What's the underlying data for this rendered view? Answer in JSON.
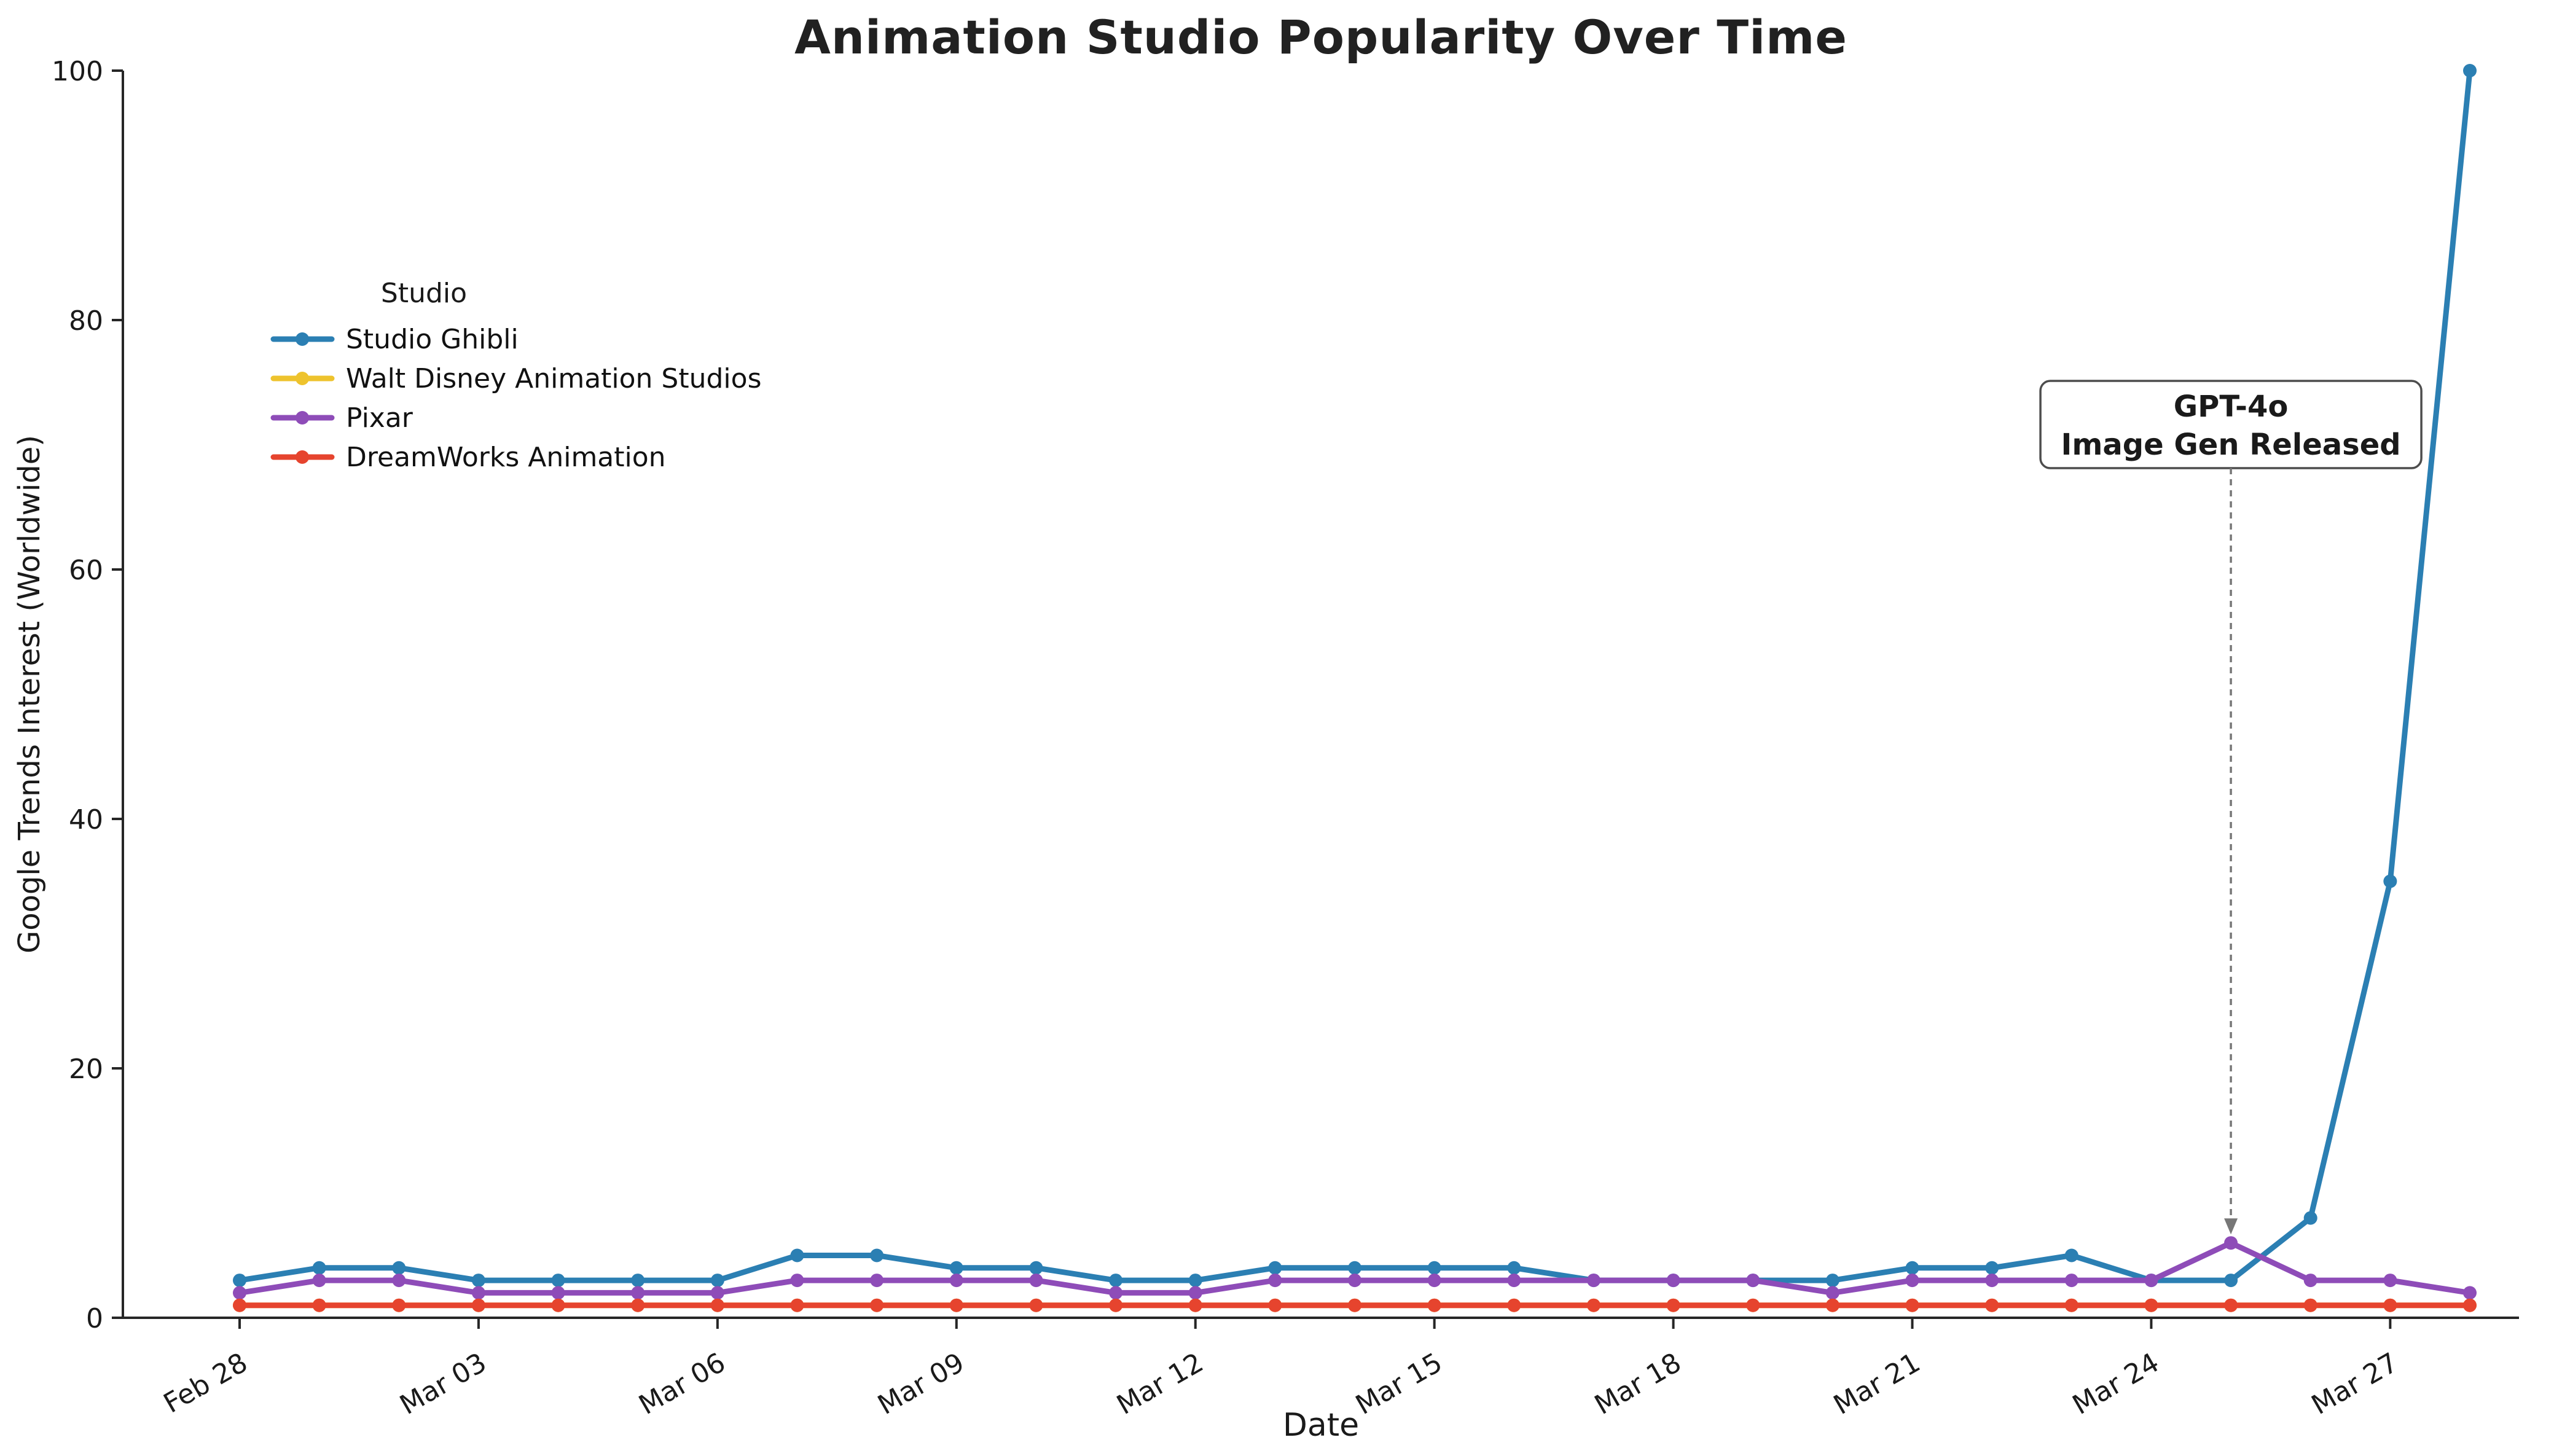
{
  "figure": {
    "background": "#ffffff",
    "text_color": "#1a1a1a",
    "spine_color": "#262626"
  },
  "chart_data": {
    "type": "line",
    "title": "Animation Studio Popularity Over Time",
    "xlabel": "Date",
    "ylabel": "Google Trends Interest (Worldwide)",
    "ylim": [
      0,
      100
    ],
    "yticks": [
      0,
      20,
      40,
      60,
      80,
      100
    ],
    "grid": false,
    "legend_title": "Studio",
    "legend_position": "upper left",
    "x": [
      "Feb 28",
      "Mar 01",
      "Mar 02",
      "Mar 03",
      "Mar 04",
      "Mar 05",
      "Mar 06",
      "Mar 07",
      "Mar 08",
      "Mar 09",
      "Mar 10",
      "Mar 11",
      "Mar 12",
      "Mar 13",
      "Mar 14",
      "Mar 15",
      "Mar 16",
      "Mar 17",
      "Mar 18",
      "Mar 19",
      "Mar 20",
      "Mar 21",
      "Mar 22",
      "Mar 23",
      "Mar 24",
      "Mar 25",
      "Mar 26",
      "Mar 27",
      "Mar 28"
    ],
    "xtick_labels": [
      "Feb 28",
      "Mar 03",
      "Mar 06",
      "Mar 09",
      "Mar 12",
      "Mar 15",
      "Mar 18",
      "Mar 21",
      "Mar 24",
      "Mar 27"
    ],
    "series": [
      {
        "name": "Studio Ghibli",
        "color": "#2b7fb3",
        "values": [
          3,
          4,
          4,
          3,
          3,
          3,
          3,
          5,
          5,
          4,
          4,
          3,
          3,
          4,
          4,
          4,
          4,
          3,
          3,
          3,
          3,
          4,
          4,
          5,
          3,
          3,
          8,
          35,
          100
        ]
      },
      {
        "name": "Walt Disney Animation Studios",
        "color": "#eec32d",
        "values": [
          1,
          1,
          1,
          1,
          1,
          1,
          1,
          1,
          1,
          1,
          1,
          1,
          1,
          1,
          1,
          1,
          1,
          1,
          1,
          1,
          1,
          1,
          1,
          1,
          1,
          1,
          1,
          1,
          1
        ]
      },
      {
        "name": "Pixar",
        "color": "#8e4cb8",
        "values": [
          2,
          3,
          3,
          2,
          2,
          2,
          2,
          3,
          3,
          3,
          3,
          2,
          2,
          3,
          3,
          3,
          3,
          3,
          3,
          3,
          2,
          3,
          3,
          3,
          3,
          6,
          3,
          3,
          2
        ]
      },
      {
        "name": "DreamWorks Animation",
        "color": "#e6442e",
        "values": [
          1,
          1,
          1,
          1,
          1,
          1,
          1,
          1,
          1,
          1,
          1,
          1,
          1,
          1,
          1,
          1,
          1,
          1,
          1,
          1,
          1,
          1,
          1,
          1,
          1,
          1,
          1,
          1,
          1
        ]
      }
    ],
    "annotation": {
      "lines": [
        "GPT-4o",
        "Image Gen Released"
      ],
      "x": "Mar 25",
      "points_to_value": 6
    }
  }
}
